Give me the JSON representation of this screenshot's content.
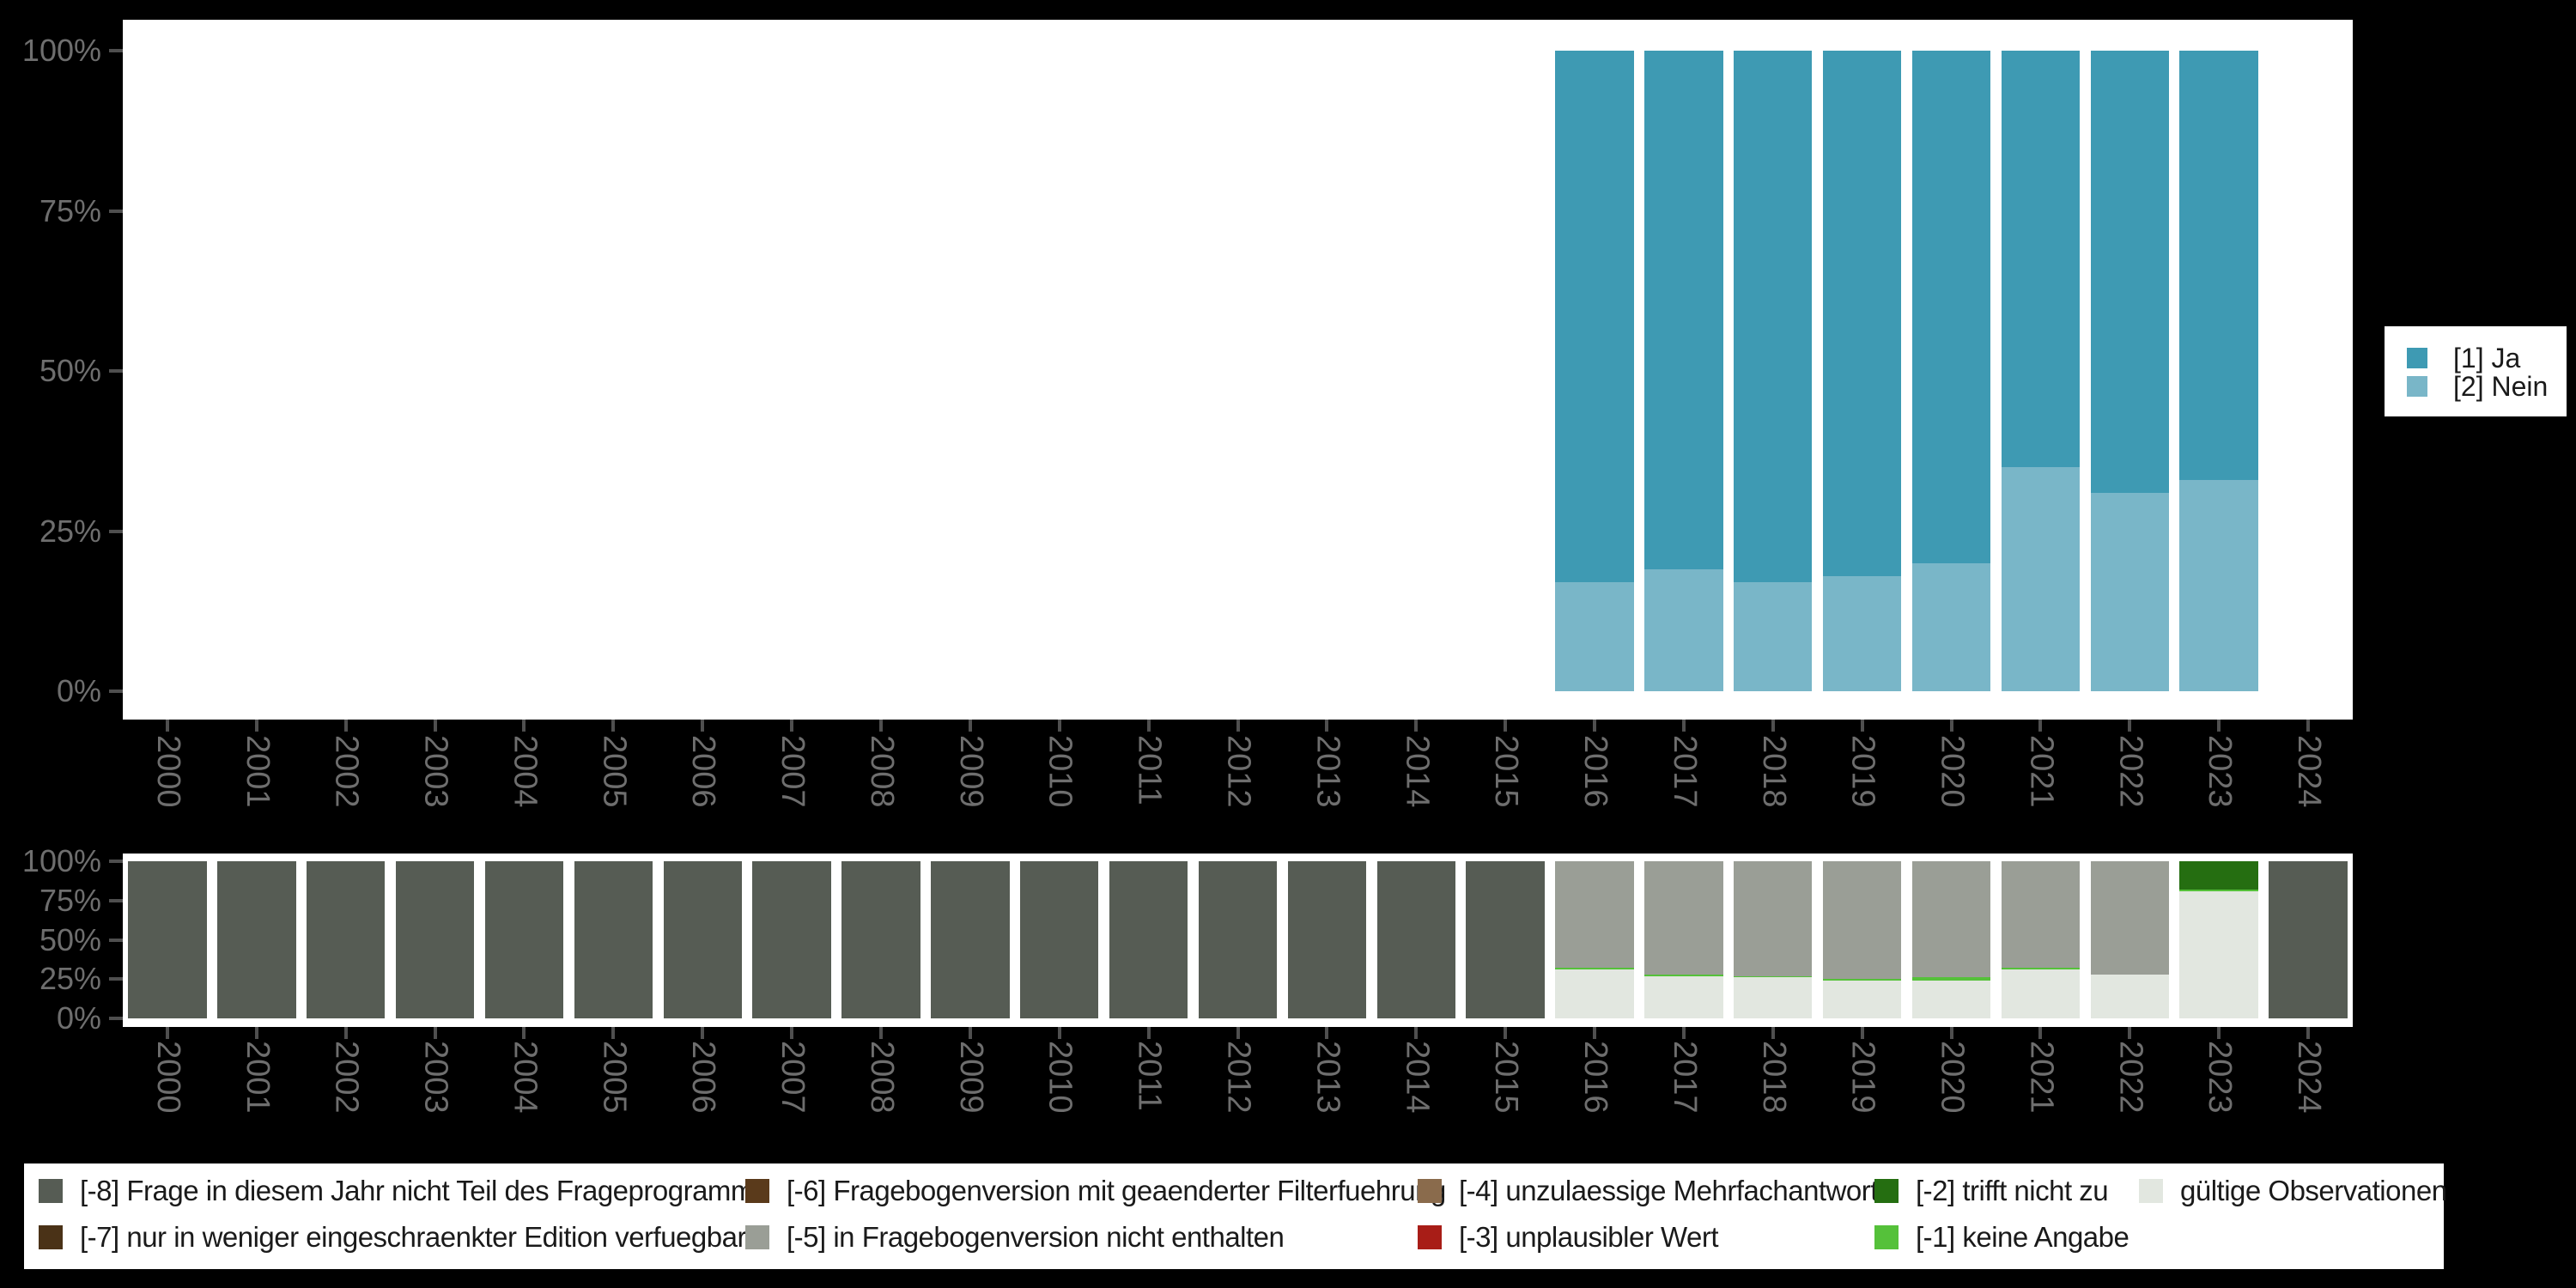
{
  "background_color": "#000000",
  "panel_color": "#ffffff",
  "axis": {
    "tick_color": "#4f4f4f",
    "label_color": "#6e6e6e",
    "y_tick_labels": [
      "100%",
      "75%",
      "50%",
      "25%",
      "0%"
    ],
    "y_tick_percents": [
      100,
      75,
      50,
      25,
      0
    ],
    "years": [
      "2000",
      "2001",
      "2002",
      "2003",
      "2004",
      "2005",
      "2006",
      "2007",
      "2008",
      "2009",
      "2010",
      "2011",
      "2012",
      "2013",
      "2014",
      "2015",
      "2016",
      "2017",
      "2018",
      "2019",
      "2020",
      "2021",
      "2022",
      "2023",
      "2024"
    ]
  },
  "top_legend": {
    "items": [
      {
        "label": "[1] Ja",
        "color": "#3e9ab3"
      },
      {
        "label": "[2] Nein",
        "color": "#79b6c8"
      }
    ]
  },
  "bottom_legend": {
    "items": [
      {
        "row": 0,
        "col": 0,
        "label": "[-8] Frage in diesem Jahr nicht Teil des Frageprogramms",
        "color": "#565c54"
      },
      {
        "row": 1,
        "col": 0,
        "label": "[-7] nur in weniger eingeschraenkter Edition verfuegbar",
        "color": "#4a3217"
      },
      {
        "row": 0,
        "col": 1,
        "label": "[-6] Fragebogenversion mit geaenderter Filterfuehrung",
        "color": "#5a3a1b"
      },
      {
        "row": 1,
        "col": 1,
        "label": "[-5] in Fragebogenversion nicht enthalten",
        "color": "#9a9e96"
      },
      {
        "row": 0,
        "col": 2,
        "label": "[-4] unzulaessige Mehrfachantwort",
        "color": "#8a6b4c"
      },
      {
        "row": 1,
        "col": 2,
        "label": "[-3] unplausibler Wert",
        "color": "#a81d17"
      },
      {
        "row": 0,
        "col": 3,
        "label": "[-2] trifft nicht zu",
        "color": "#256e11"
      },
      {
        "row": 1,
        "col": 3,
        "label": "[-1] keine Angabe",
        "color": "#55c13a"
      },
      {
        "row": 0,
        "col": 4,
        "label": "gültige Observationen",
        "color": "#e2e7e0"
      }
    ]
  },
  "chart_data": [
    {
      "type": "bar",
      "stacked": true,
      "percent": true,
      "title": "",
      "xlabel": "",
      "ylabel": "",
      "ylim": [
        0,
        100
      ],
      "grid": false,
      "legend_position": "right",
      "y_ticks": [
        "100%",
        "75%",
        "50%",
        "25%",
        "0%"
      ],
      "categories": [
        "2000",
        "2001",
        "2002",
        "2003",
        "2004",
        "2005",
        "2006",
        "2007",
        "2008",
        "2009",
        "2010",
        "2011",
        "2012",
        "2013",
        "2014",
        "2015",
        "2016",
        "2017",
        "2018",
        "2019",
        "2020",
        "2021",
        "2022",
        "2023",
        "2024"
      ],
      "stack_bottom_to_top": [
        "[2] Nein",
        "[1] Ja"
      ],
      "series": [
        {
          "name": "[1] Ja",
          "color": "#3e9ab3",
          "values": [
            null,
            null,
            null,
            null,
            null,
            null,
            null,
            null,
            null,
            null,
            null,
            null,
            null,
            null,
            null,
            null,
            83,
            81,
            83,
            82,
            80,
            65,
            69,
            67,
            null
          ]
        },
        {
          "name": "[2] Nein",
          "color": "#79b6c8",
          "values": [
            null,
            null,
            null,
            null,
            null,
            null,
            null,
            null,
            null,
            null,
            null,
            null,
            null,
            null,
            null,
            null,
            17,
            19,
            17,
            18,
            20,
            35,
            31,
            33,
            null
          ]
        }
      ]
    },
    {
      "type": "bar",
      "stacked": true,
      "percent": true,
      "title": "",
      "xlabel": "",
      "ylabel": "",
      "ylim": [
        0,
        100
      ],
      "grid": false,
      "legend_position": "bottom",
      "y_ticks": [
        "100%",
        "75%",
        "50%",
        "25%",
        "0%"
      ],
      "categories": [
        "2000",
        "2001",
        "2002",
        "2003",
        "2004",
        "2005",
        "2006",
        "2007",
        "2008",
        "2009",
        "2010",
        "2011",
        "2012",
        "2013",
        "2014",
        "2015",
        "2016",
        "2017",
        "2018",
        "2019",
        "2020",
        "2021",
        "2022",
        "2023",
        "2024"
      ],
      "stack_bottom_to_top": [
        "gültige Observationen",
        "[-1] keine Angabe",
        "[-2] trifft nicht zu",
        "[-5] in Fragebogenversion nicht enthalten",
        "[-8] Frage in diesem Jahr nicht Teil des Frageprogramms"
      ],
      "series": [
        {
          "name": "[-8] Frage in diesem Jahr nicht Teil des Frageprogramms",
          "color": "#565c54",
          "values": [
            100,
            100,
            100,
            100,
            100,
            100,
            100,
            100,
            100,
            100,
            100,
            100,
            100,
            100,
            100,
            100,
            0,
            0,
            0,
            0,
            0,
            0,
            0,
            0,
            100
          ]
        },
        {
          "name": "[-5] in Fragebogenversion nicht enthalten",
          "color": "#9a9e96",
          "values": [
            0,
            0,
            0,
            0,
            0,
            0,
            0,
            0,
            0,
            0,
            0,
            0,
            0,
            0,
            0,
            0,
            68,
            72,
            73,
            75,
            74,
            68,
            72,
            0,
            0
          ]
        },
        {
          "name": "[-2] trifft nicht zu",
          "color": "#256e11",
          "values": [
            0,
            0,
            0,
            0,
            0,
            0,
            0,
            0,
            0,
            0,
            0,
            0,
            0,
            0,
            0,
            0,
            0,
            0,
            0,
            0,
            0,
            0,
            0,
            18,
            0
          ]
        },
        {
          "name": "[-1] keine Angabe",
          "color": "#55c13a",
          "values": [
            0,
            0,
            0,
            0,
            0,
            0,
            0,
            0,
            0,
            0,
            0,
            0,
            0,
            0,
            0,
            0,
            1,
            1,
            1,
            1,
            2,
            1,
            0,
            1,
            0
          ]
        },
        {
          "name": "gültige Observationen",
          "color": "#e2e7e0",
          "values": [
            0,
            0,
            0,
            0,
            0,
            0,
            0,
            0,
            0,
            0,
            0,
            0,
            0,
            0,
            0,
            0,
            31,
            27,
            26,
            24,
            24,
            31,
            28,
            81,
            0
          ]
        }
      ]
    }
  ]
}
